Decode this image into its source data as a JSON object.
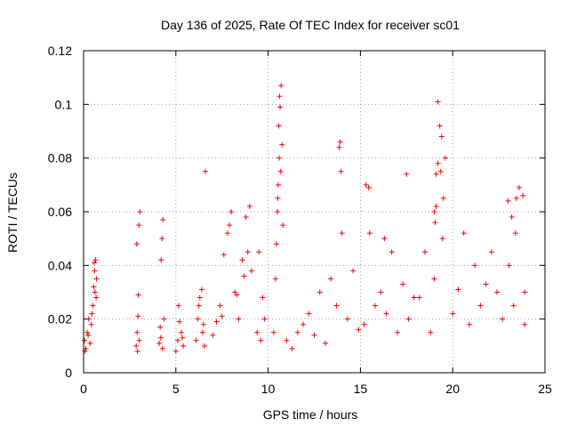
{
  "chart_data": {
    "type": "scatter",
    "title": "Day 136 of 2025, Rate Of TEC Index for receiver sc01",
    "xlabel": "GPS time / hours",
    "ylabel": "ROTI / TECUs",
    "xlim": [
      0,
      25
    ],
    "ylim": [
      0,
      0.12
    ],
    "x_ticks": [
      "0",
      "5",
      "10",
      "15",
      "20",
      "25"
    ],
    "y_ticks": [
      "0",
      "0.02",
      "0.04",
      "0.06",
      "0.08",
      "0.1",
      "0.12"
    ],
    "grid": true,
    "marker": "+",
    "marker_color": "#ff0000",
    "series": [
      {
        "x": [
          0.05,
          0.12,
          0.2,
          0.28,
          0.35,
          0.42,
          0.5,
          0.55,
          0.6,
          0.65,
          0.7,
          0.08,
          0.25,
          0.45,
          0.58,
          0.62,
          0.68,
          2.85,
          2.9,
          2.95,
          3.0,
          3.05,
          2.88,
          2.97,
          3.02,
          2.92,
          4.1,
          4.15,
          4.2,
          4.25,
          4.3,
          4.35,
          4.18,
          4.28,
          5.0,
          5.1,
          5.2,
          5.3,
          5.4,
          5.15,
          5.35,
          6.1,
          6.2,
          6.3,
          6.4,
          6.5,
          6.6,
          6.25,
          6.45,
          6.55,
          7.0,
          7.2,
          7.4,
          7.6,
          7.8,
          8.0,
          8.2,
          8.4,
          8.6,
          8.8,
          9.0,
          7.5,
          7.9,
          8.3,
          8.7,
          8.9,
          9.1,
          9.4,
          9.6,
          9.8,
          9.5,
          9.7,
          10.3,
          10.4,
          10.5,
          10.55,
          10.6,
          10.65,
          10.7,
          10.75,
          10.8,
          10.45,
          10.52,
          10.58,
          10.62,
          10.68,
          11.0,
          11.3,
          11.6,
          11.9,
          12.2,
          12.5,
          12.8,
          13.1,
          13.4,
          13.7,
          14.0,
          14.3,
          14.6,
          14.9,
          13.85,
          13.9,
          13.95,
          15.2,
          15.5,
          15.8,
          16.1,
          16.4,
          16.7,
          17.0,
          17.3,
          17.6,
          17.9,
          15.3,
          15.45,
          16.3,
          17.5,
          18.2,
          18.5,
          18.8,
          19.0,
          19.1,
          19.2,
          19.3,
          19.4,
          19.5,
          19.6,
          19.0,
          19.05,
          19.1,
          19.2,
          19.35,
          19.45,
          20.0,
          20.3,
          20.6,
          20.9,
          21.2,
          21.5,
          21.8,
          22.1,
          22.4,
          22.7,
          23.0,
          23.2,
          23.4,
          23.6,
          23.8,
          23.9,
          23.05,
          23.3,
          23.45,
          23.9
        ],
        "y": [
          0.012,
          0.009,
          0.015,
          0.02,
          0.011,
          0.018,
          0.025,
          0.032,
          0.038,
          0.042,
          0.035,
          0.008,
          0.014,
          0.022,
          0.041,
          0.03,
          0.028,
          0.01,
          0.015,
          0.021,
          0.055,
          0.06,
          0.048,
          0.029,
          0.012,
          0.008,
          0.011,
          0.017,
          0.042,
          0.05,
          0.057,
          0.02,
          0.013,
          0.009,
          0.008,
          0.012,
          0.019,
          0.015,
          0.01,
          0.025,
          0.013,
          0.012,
          0.02,
          0.028,
          0.031,
          0.018,
          0.075,
          0.025,
          0.015,
          0.01,
          0.014,
          0.019,
          0.025,
          0.044,
          0.052,
          0.06,
          0.03,
          0.02,
          0.042,
          0.058,
          0.062,
          0.021,
          0.055,
          0.029,
          0.036,
          0.045,
          0.038,
          0.015,
          0.012,
          0.02,
          0.045,
          0.028,
          0.015,
          0.035,
          0.06,
          0.07,
          0.08,
          0.099,
          0.107,
          0.085,
          0.055,
          0.048,
          0.065,
          0.092,
          0.103,
          0.075,
          0.012,
          0.009,
          0.015,
          0.018,
          0.022,
          0.014,
          0.03,
          0.011,
          0.035,
          0.025,
          0.052,
          0.02,
          0.038,
          0.016,
          0.084,
          0.086,
          0.075,
          0.018,
          0.052,
          0.025,
          0.03,
          0.022,
          0.045,
          0.015,
          0.033,
          0.02,
          0.028,
          0.07,
          0.069,
          0.05,
          0.074,
          0.028,
          0.045,
          0.015,
          0.035,
          0.074,
          0.101,
          0.092,
          0.088,
          0.065,
          0.08,
          0.06,
          0.056,
          0.062,
          0.078,
          0.075,
          0.05,
          0.022,
          0.031,
          0.052,
          0.018,
          0.04,
          0.025,
          0.033,
          0.045,
          0.03,
          0.02,
          0.064,
          0.058,
          0.052,
          0.069,
          0.066,
          0.03,
          0.04,
          0.025,
          0.065,
          0.018
        ]
      }
    ]
  }
}
